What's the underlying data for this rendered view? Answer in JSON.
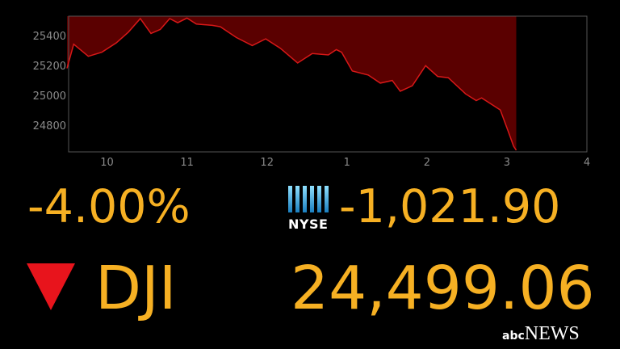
{
  "chart_data": {
    "type": "area",
    "title": "",
    "xlabel": "",
    "ylabel": "",
    "x_tick_labels": [
      "10",
      "11",
      "12",
      "1",
      "2",
      "3",
      "4"
    ],
    "x_tick_hours": [
      10,
      11,
      12,
      13,
      14,
      15,
      16
    ],
    "y_ticks": [
      24800,
      25000,
      25200,
      25400
    ],
    "xlim_hours": [
      9.52,
      16.0
    ],
    "ylim": [
      24620,
      25530
    ],
    "grid": false,
    "colors": {
      "line": "#d81818",
      "fill_above": "#5a0000",
      "frame": "#555555",
      "tick_text": "#8a8a8a"
    },
    "series": [
      {
        "time": [
          "9:30",
          "9:35",
          "9:46",
          "9:56",
          "10:07",
          "10:16",
          "10:25",
          "10:33",
          "10:40",
          "10:47",
          "10:53",
          "11:00",
          "11:07",
          "11:19",
          "11:25",
          "11:37",
          "11:49",
          "11:59",
          "12:10",
          "12:23",
          "12:34",
          "12:46",
          "12:52",
          "12:56",
          "13:04",
          "13:16",
          "13:25",
          "13:34",
          "13:40",
          "13:49",
          "13:59",
          "14:08",
          "14:16",
          "14:29",
          "14:37",
          "14:41",
          "14:55",
          "15:01",
          "15:05",
          "15:07"
        ],
        "values": [
          25180,
          25342,
          25261,
          25288,
          25351,
          25423,
          25514,
          25414,
          25441,
          25514,
          25486,
          25517,
          25477,
          25468,
          25459,
          25387,
          25333,
          25378,
          25315,
          25216,
          25279,
          25270,
          25306,
          25288,
          25162,
          25135,
          25081,
          25099,
          25027,
          25063,
          25198,
          25126,
          25117,
          25009,
          24964,
          24982,
          24901,
          24757,
          24658,
          24631
        ]
      }
    ]
  },
  "ticker": {
    "percent_change": "-4.00%",
    "point_change": "-1,021.90",
    "symbol": "DJI",
    "value": "24,499.06",
    "direction": "down",
    "exchange": "NYSE",
    "accent_color": "#f6b023",
    "down_color": "#e8141c"
  },
  "branding": {
    "abc": "abc",
    "news": "NEWS"
  }
}
